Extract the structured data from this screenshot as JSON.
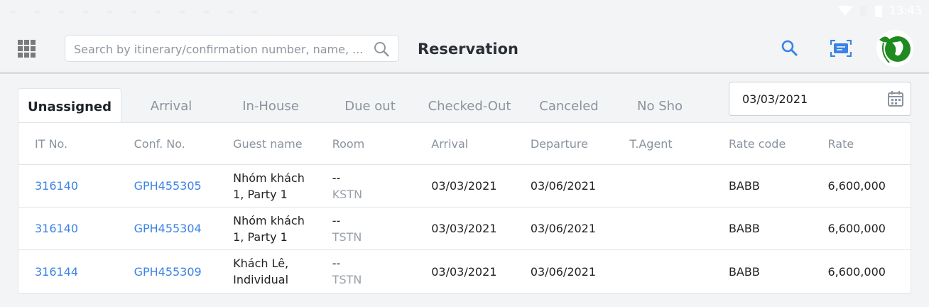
{
  "status_bar": {
    "time": "13:43"
  },
  "header": {
    "search_placeholder": "Search by itinerary/confirmation number, name, ...",
    "title": "Reservation"
  },
  "tabs": [
    {
      "label": "Unassigned",
      "active": true
    },
    {
      "label": "Arrival"
    },
    {
      "label": "In-House"
    },
    {
      "label": "Due out"
    },
    {
      "label": "Checked-Out"
    },
    {
      "label": "Canceled"
    },
    {
      "label": "No Sho"
    }
  ],
  "date_filter": {
    "value": "03/03/2021"
  },
  "table": {
    "columns": [
      "IT No.",
      "Conf. No.",
      "Guest name",
      "Room",
      "Arrival",
      "Departure",
      "T.Agent",
      "Rate code",
      "Rate"
    ],
    "rows": [
      {
        "it": "316140",
        "conf": "GPH455305",
        "guest1": "Nhóm khách",
        "guest2": "1, Party 1",
        "room": "--",
        "room_type": "KSTN",
        "arrival": "03/03/2021",
        "departure": "03/06/2021",
        "agent": "",
        "rate_code": "BABB",
        "rate": "6,600,000"
      },
      {
        "it": "316140",
        "conf": "GPH455304",
        "guest1": "Nhóm khách",
        "guest2": "1, Party 1",
        "room": "--",
        "room_type": "TSTN",
        "arrival": "03/03/2021",
        "departure": "03/06/2021",
        "agent": "",
        "rate_code": "BABB",
        "rate": "6,600,000"
      },
      {
        "it": "316144",
        "conf": "GPH455309",
        "guest1": "Khách Lê,",
        "guest2": "Individual",
        "room": "--",
        "room_type": "TSTN",
        "arrival": "03/03/2021",
        "departure": "03/06/2021",
        "agent": "",
        "rate_code": "BABB",
        "rate": "6,600,000"
      }
    ]
  },
  "colors": {
    "accent": "#3b82e6",
    "logo_green": "#1f8a1f"
  }
}
